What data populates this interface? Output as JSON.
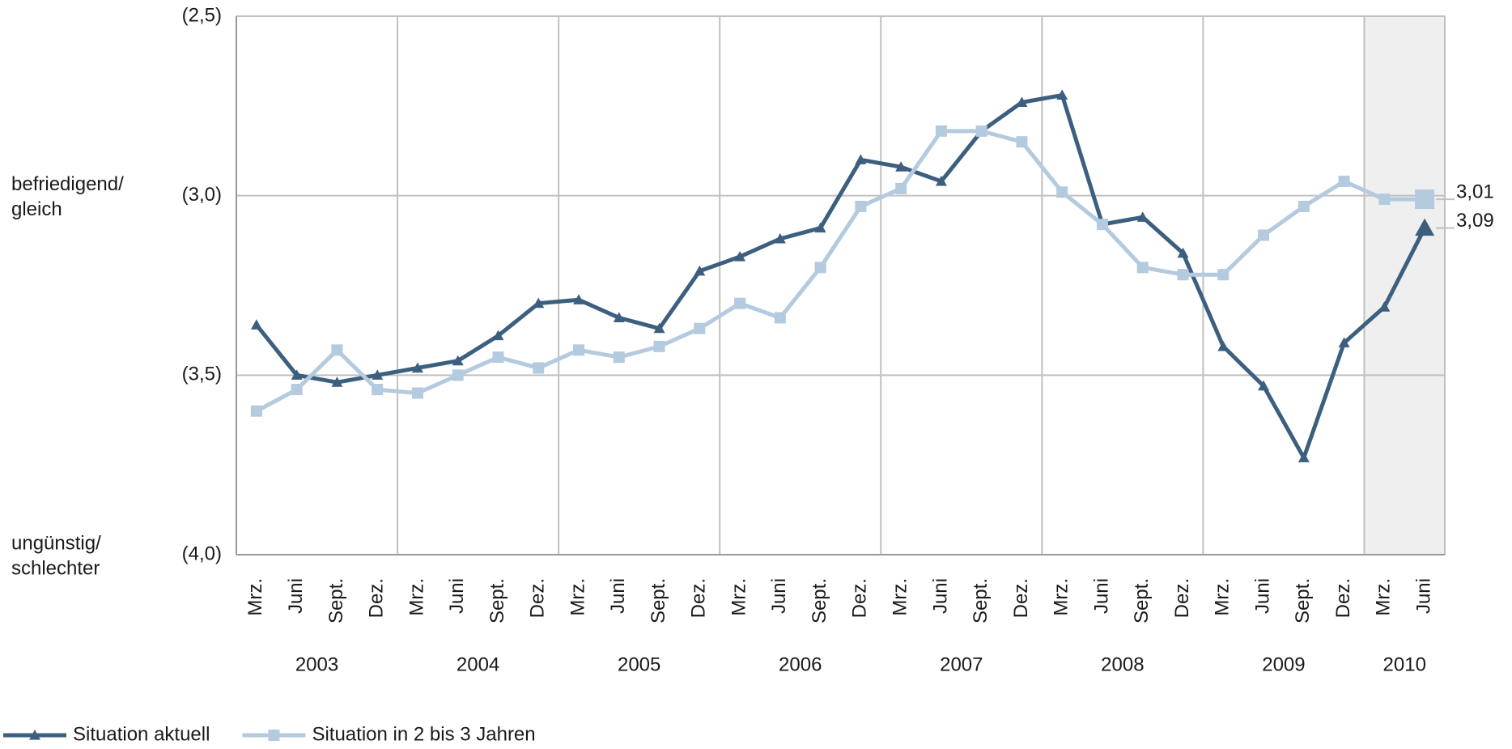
{
  "chart_data": {
    "type": "line",
    "categories": [
      "Mrz.",
      "Juni",
      "Sept.",
      "Dez.",
      "Mrz.",
      "Juni",
      "Sept.",
      "Dez.",
      "Mrz.",
      "Juni",
      "Sept.",
      "Dez.",
      "Mrz.",
      "Juni",
      "Sept.",
      "Dez.",
      "Mrz.",
      "Juni",
      "Sept.",
      "Dez.",
      "Mrz.",
      "Juni",
      "Sept.",
      "Dez.",
      "Mrz.",
      "Juni",
      "Sept.",
      "Dez.",
      "Mrz.",
      "Juni"
    ],
    "x_groups": [
      "2003",
      "2004",
      "2005",
      "2006",
      "2007",
      "2008",
      "2009",
      "2010"
    ],
    "shade_last_group": true,
    "series": [
      {
        "name": "Situation aktuell",
        "color": "#3d5f7f",
        "marker": "triangle",
        "values": [
          3.36,
          3.5,
          3.52,
          3.5,
          3.48,
          3.46,
          3.39,
          3.3,
          3.29,
          3.34,
          3.37,
          3.21,
          3.17,
          3.12,
          3.09,
          2.9,
          2.92,
          2.96,
          2.82,
          2.74,
          2.72,
          3.08,
          3.06,
          3.16,
          3.42,
          3.53,
          3.73,
          3.41,
          3.31,
          3.09
        ],
        "value_labels": [
          null,
          null,
          null,
          null,
          null,
          null,
          null,
          null,
          null,
          null,
          null,
          null,
          null,
          null,
          null,
          null,
          null,
          null,
          null,
          null,
          null,
          null,
          null,
          null,
          null,
          null,
          null,
          null,
          null,
          "3,09"
        ]
      },
      {
        "name": "Situation in 2 bis 3 Jahren",
        "color": "#b3cadf",
        "marker": "square",
        "values": [
          3.6,
          3.54,
          3.43,
          3.54,
          3.55,
          3.5,
          3.45,
          3.48,
          3.43,
          3.45,
          3.42,
          3.37,
          3.3,
          3.34,
          3.2,
          3.03,
          2.98,
          2.82,
          2.82,
          2.85,
          2.99,
          3.08,
          3.2,
          3.22,
          3.22,
          3.11,
          3.03,
          2.96,
          3.01,
          3.01
        ],
        "value_labels": [
          null,
          null,
          null,
          null,
          null,
          null,
          null,
          null,
          null,
          null,
          null,
          null,
          null,
          null,
          null,
          null,
          null,
          null,
          null,
          null,
          null,
          null,
          null,
          null,
          null,
          null,
          null,
          null,
          null,
          "3,01"
        ]
      }
    ],
    "ylim": [
      2.5,
      4.0
    ],
    "y_reversed": true,
    "yticks": [
      {
        "value": 2.5,
        "label": "(2,5)"
      },
      {
        "value": 3.0,
        "label": "(3,0)"
      },
      {
        "value": 3.5,
        "label": "(3,5)"
      },
      {
        "value": 4.0,
        "label": "(4,0)"
      }
    ],
    "y_side_labels": [
      {
        "value": 3.0,
        "lines": [
          "befriedigend/",
          "gleich"
        ]
      },
      {
        "value": 4.0,
        "lines": [
          "ungünstig/",
          "schlechter"
        ]
      }
    ],
    "grid": true,
    "legend": "bottom-left"
  }
}
